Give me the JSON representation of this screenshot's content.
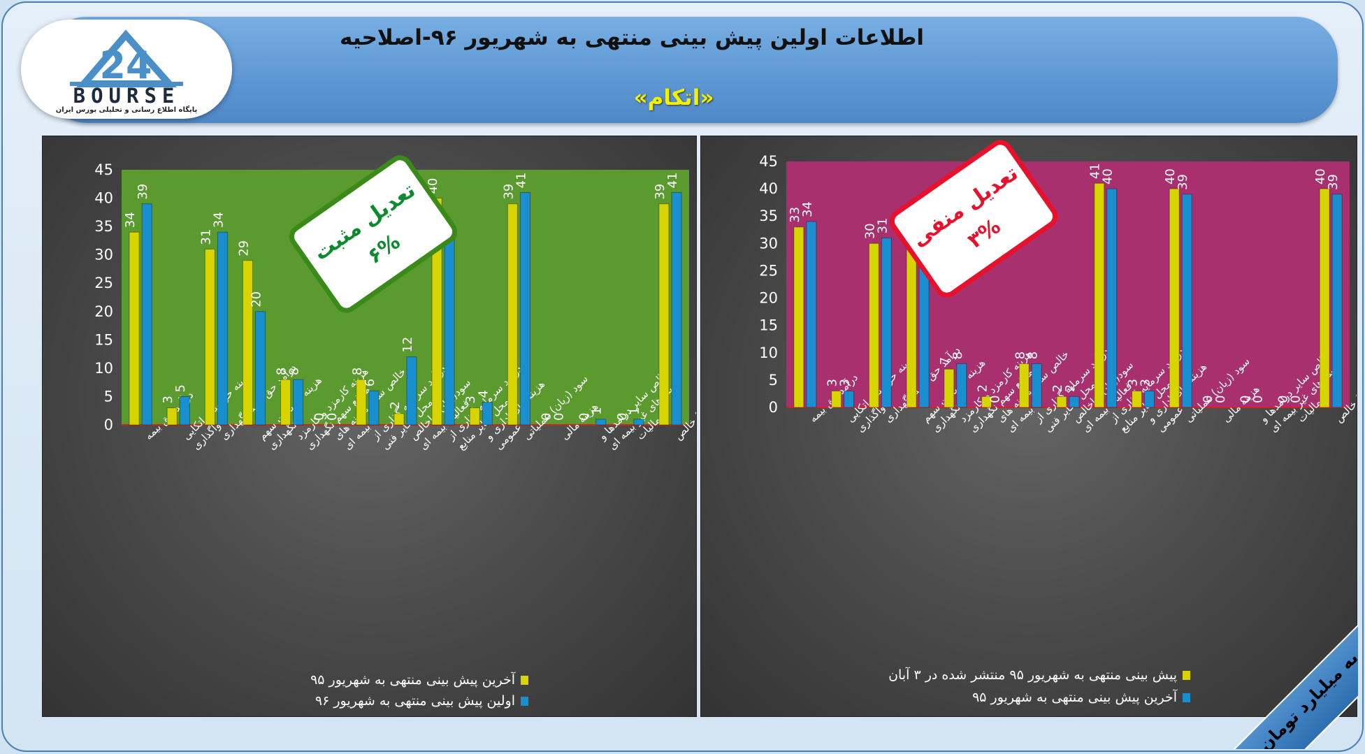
{
  "header": {
    "title": "اطلاعات اولین پیش بینی منتهی به شهریور ۹۶-اصلاحیه",
    "company": "«اتکام»"
  },
  "logo": {
    "word": "BOURSE",
    "subtitle": "پایگاه اطلاع رسانی و تحلیلی بورس ایران"
  },
  "badge": {
    "text": "ارقام به میلیارد تومان"
  },
  "chart_data": [
    {
      "type": "bar",
      "plot_bg": "#5a9a2f",
      "ylim": [
        0,
        45
      ],
      "yticks": [
        0,
        5,
        10,
        15,
        20,
        25,
        30,
        35,
        40,
        45
      ],
      "grid": false,
      "categories": [
        "درآمد حق بیمه",
        "هزینه حق بیمه اتکایی واگذاری",
        "درآمد حق بیمه نگهداری",
        "هزینه خسارت سهم نگهداری",
        "هزینه کارمزد و کارمزد منافع سهم نگهداری",
        "خالص سایر هزینه های بیمه ای",
        "درآمد سرمایه گذاری از محل ذخایر فنی",
        "سود(زیان) ناخالص فعالیت بیمه ای",
        "درامد سرمایه گذاری از محل سایر منابع",
        "هزینه های اداری و عمومی",
        "سود (زیان) عملیاتی",
        "هزینه مالی",
        "خالص سایر درامدها و هزینه های غیر بیمه ای",
        "مالیات",
        "سود (زیان) خالص"
      ],
      "series": [
        {
          "name": "آخرین پیش بینی منتهی به شهریور ۹۵",
          "color": "#d8d400",
          "values": [
            34,
            3,
            31,
            29,
            8,
            0,
            8,
            2,
            40,
            3,
            39,
            0,
            0,
            0,
            39
          ]
        },
        {
          "name": "اولین پیش بینی منتهی به شهریور ۹۶",
          "color": "#1a8fd0",
          "values": [
            39,
            5,
            34,
            20,
            8,
            0,
            6,
            12,
            33,
            4,
            41,
            0,
            1,
            1,
            41
          ]
        }
      ],
      "legend": "bottom",
      "annotation": {
        "line1": "تعدیل مثبت",
        "line2": "۶%",
        "border": "#3a8a1a",
        "text_color": "#0c8a2e"
      }
    },
    {
      "type": "bar",
      "plot_bg": "#a8306e",
      "ylim": [
        0,
        45
      ],
      "yticks": [
        0,
        5,
        10,
        15,
        20,
        25,
        30,
        35,
        40,
        45
      ],
      "grid": false,
      "categories": [
        "درآمد حق بیمه",
        "هزینه حق بیمه اتکایی واگذاری",
        "درآمد حق بیمه نگهداری",
        "هزینه خسارت سهم نگهداری",
        "هزینه کارمزد و کارمزد منافع سهم نگهداری",
        "خالص سایر هزینه های بیمه ای",
        "درآمد سرمایه گذاری از محل ذخایر فنی",
        "سود(زیان) ناخالص فعالیت بیمه ای",
        "درامد سرمایه گذاری از محل سایر منابع",
        "هزینه های اداری و عمومی",
        "سود (زیان) عملیاتی",
        "هزینه مالی",
        "خالص سایر درامدها و هزینه های غیر بیمه ای",
        "مالیات",
        "سود (زیان) خالص"
      ],
      "series": [
        {
          "name": "پیش بینی منتهی به شهریور ۹۵ منتشر شده در ۳ آبان",
          "color": "#d8d400",
          "values": [
            33,
            3,
            30,
            31,
            7,
            2,
            8,
            2,
            41,
            3,
            40,
            0,
            0,
            0,
            40
          ]
        },
        {
          "name": "آخرین پیش بینی منتهی به شهریور ۹۵",
          "color": "#1a8fd0",
          "values": [
            34,
            3,
            31,
            29,
            8,
            0,
            8,
            2,
            40,
            3,
            39,
            0,
            0,
            0,
            39
          ]
        }
      ],
      "legend": "bottom",
      "annotation": {
        "line1": "تعدیل منفی",
        "line2": "۳%",
        "border": "#e8102a",
        "text_color": "#e8102a"
      }
    }
  ]
}
